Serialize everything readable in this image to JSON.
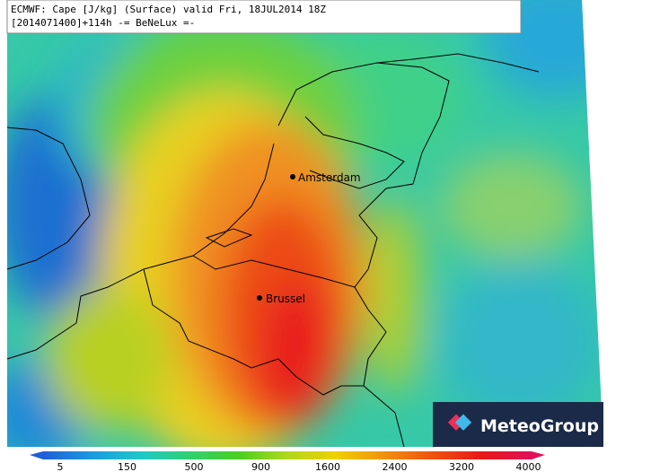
{
  "header": {
    "line1": "ECMWF: Cape [J/kg] (Surface) valid Fri, 18JUL2014 18Z",
    "line2": "[2014071400]+114h  -= BeNeLux =-"
  },
  "cities": [
    {
      "label": "Amsterdam"
    },
    {
      "label": "Brussel"
    }
  ],
  "colorbar": {
    "ticks": [
      5,
      150,
      500,
      900,
      1600,
      2400,
      3200,
      4000
    ]
  },
  "logo": {
    "text": "MeteoGroup"
  }
}
